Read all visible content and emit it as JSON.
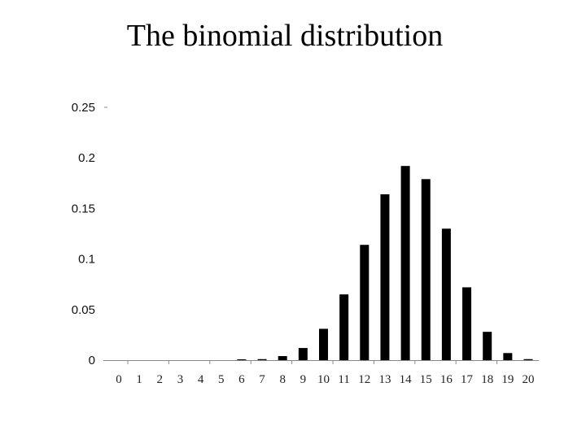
{
  "title": "The binomial distribution",
  "chart_data": {
    "type": "bar",
    "title": "The binomial distribution",
    "xlabel": "",
    "ylabel": "",
    "categories": [
      "0",
      "1",
      "2",
      "3",
      "4",
      "5",
      "6",
      "7",
      "8",
      "9",
      "10",
      "11",
      "12",
      "13",
      "14",
      "15",
      "16",
      "17",
      "18",
      "19",
      "20"
    ],
    "values": [
      0.0,
      0.0,
      0.0,
      0.0,
      0.0,
      0.0,
      0.0002,
      0.001,
      0.004,
      0.012,
      0.031,
      0.065,
      0.114,
      0.164,
      0.192,
      0.179,
      0.13,
      0.072,
      0.028,
      0.007,
      0.001
    ],
    "ylim": [
      0,
      0.25
    ],
    "yticks": [
      "0",
      "0.05",
      "0.1",
      "0.15",
      "0.2",
      "0.25"
    ],
    "ytick_values": [
      0,
      0.05,
      0.1,
      0.15,
      0.2,
      0.25
    ],
    "grid": false,
    "legend": null,
    "bar_color": "#000000",
    "axis_color": "#888888"
  }
}
